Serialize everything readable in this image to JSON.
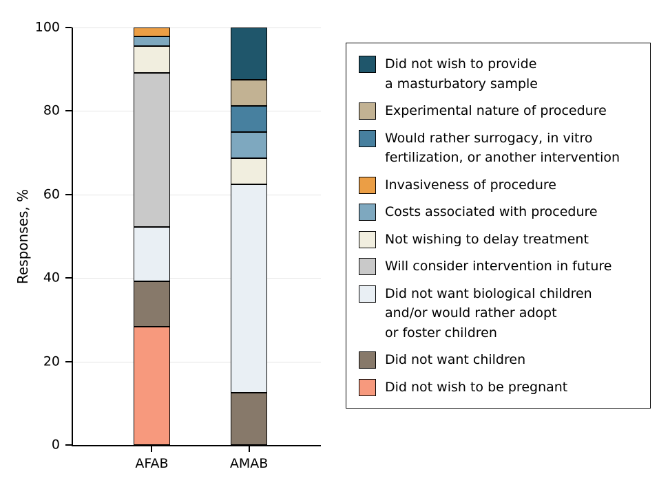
{
  "chart_data": {
    "type": "bar",
    "stacked": true,
    "title": "",
    "ylabel": "Responses, %",
    "xlabel": "",
    "ylim": [
      0,
      100
    ],
    "yticks": [
      0,
      20,
      40,
      60,
      80,
      100
    ],
    "grid": true,
    "legend_position": "right",
    "categories": [
      "AFAB",
      "AMAB"
    ],
    "series": [
      {
        "name": "Did not wish to be pregnant",
        "color": "#f7997d",
        "values": [
          28.3,
          0
        ]
      },
      {
        "name": "Did not want children",
        "color": "#87796a",
        "values": [
          10.9,
          12.5
        ]
      },
      {
        "name": "Did not want biological children and/or would rather adopt or foster children",
        "color": "#e9eff4",
        "values": [
          13.0,
          50.0
        ]
      },
      {
        "name": "Will consider intervention in future",
        "color": "#c9c9c9",
        "values": [
          36.9,
          0
        ]
      },
      {
        "name": "Not wishing to delay treatment",
        "color": "#f1eedf",
        "values": [
          6.5,
          6.25
        ]
      },
      {
        "name": "Costs associated with procedure",
        "color": "#7ea8bf",
        "values": [
          2.2,
          6.25
        ]
      },
      {
        "name": "Invasiveness of procedure",
        "color": "#eb9e45",
        "values": [
          2.2,
          0
        ]
      },
      {
        "name": "Would rather surrogacy, in vitro fertilization, or another intervention",
        "color": "#47809f",
        "values": [
          0,
          6.25
        ]
      },
      {
        "name": "Experimental nature of procedure",
        "color": "#c2b293",
        "values": [
          0,
          6.25
        ]
      },
      {
        "name": "Did not wish to provide a masturbatory sample",
        "color": "#1f566b",
        "values": [
          0,
          12.5
        ]
      }
    ],
    "legend": [
      {
        "label": "Did not wish to provide\na masturbatory sample",
        "color": "#1f566b"
      },
      {
        "label": "Experimental nature of procedure",
        "color": "#c2b293"
      },
      {
        "label": "Would rather surrogacy, in vitro\nfertilization, or another intervention",
        "color": "#47809f"
      },
      {
        "label": "Invasiveness of procedure",
        "color": "#eb9e45"
      },
      {
        "label": "Costs associated with procedure",
        "color": "#7ea8bf"
      },
      {
        "label": "Not wishing to delay treatment",
        "color": "#f1eedf"
      },
      {
        "label": "Will consider intervention in future",
        "color": "#c9c9c9"
      },
      {
        "label": "Did not want biological children\nand/or would rather adopt\nor foster children",
        "color": "#e9eff4"
      },
      {
        "label": "Did not want children",
        "color": "#87796a"
      },
      {
        "label": "Did not wish to be pregnant",
        "color": "#f7997d"
      }
    ]
  }
}
